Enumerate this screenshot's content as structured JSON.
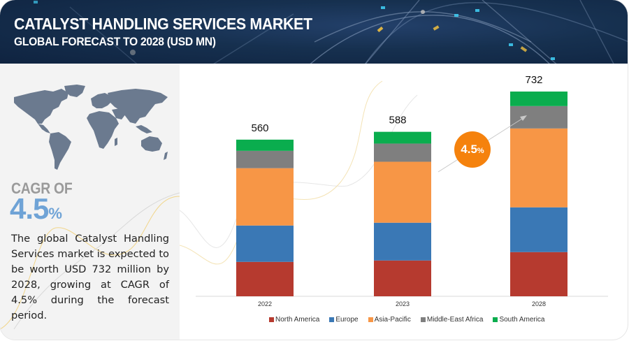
{
  "header": {
    "title": "CATALYST HANDLING SERVICES MARKET",
    "subtitle": "GLOBAL FORECAST TO 2028 (USD MN)"
  },
  "left_panel": {
    "map_icon": "world-map-icon",
    "cagr_label": "CAGR OF",
    "cagr_number": "4.5",
    "cagr_suffix": "%",
    "description": "The global Catalyst Handling Services market is expected to be worth USD 732 million by 2028, growing at  CAGR of 4.5% during the forecast period."
  },
  "badge": {
    "number": "4.5",
    "suffix": "%",
    "color": "#f5820d"
  },
  "chart_data": {
    "type": "bar",
    "stacked": true,
    "title": "Catalyst Handling Services Market, Global Forecast to 2028 (USD MN)",
    "xlabel": "",
    "ylabel": "",
    "categories": [
      "2022",
      "2023",
      "2028"
    ],
    "totals": [
      560,
      588,
      732
    ],
    "total_labels": [
      "560",
      "588",
      "732"
    ],
    "series": [
      {
        "name": "North America",
        "color": "#b63a2f",
        "values": [
          123,
          128,
          158
        ]
      },
      {
        "name": "Europe",
        "color": "#3a78b5",
        "values": [
          130,
          135,
          160
        ]
      },
      {
        "name": "Asia-Pacific",
        "color": "#f79646",
        "values": [
          205,
          218,
          282
        ]
      },
      {
        "name": "Middle-East Africa",
        "color": "#7f7f7f",
        "values": [
          62,
          65,
          80
        ]
      },
      {
        "name": "South America",
        "color": "#0aad4e",
        "values": [
          40,
          42,
          52
        ]
      }
    ],
    "ylim": [
      0,
      732
    ],
    "grid": false,
    "legend_position": "bottom",
    "annotation": "4.5% CAGR (2023 to 2028)"
  }
}
